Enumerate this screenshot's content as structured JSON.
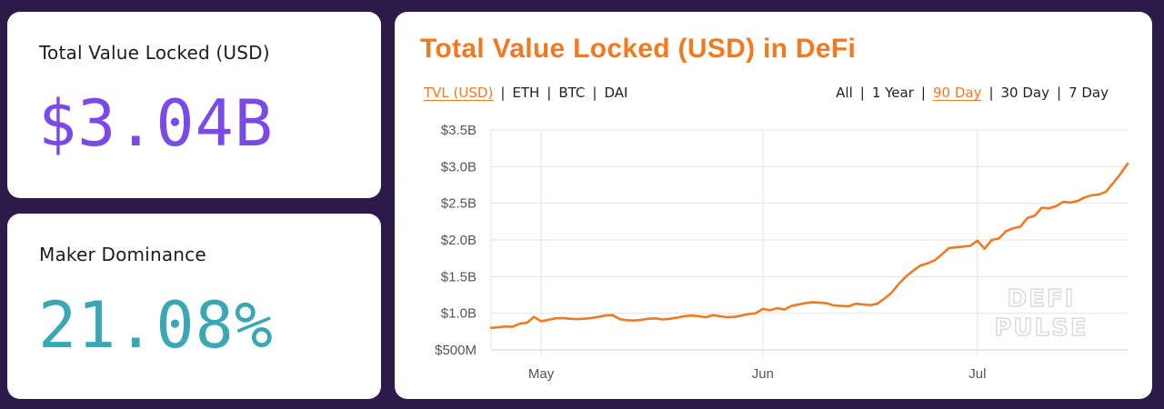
{
  "stats": {
    "tvl": {
      "label": "Total Value Locked (USD)",
      "value": "$3.04B"
    },
    "maker": {
      "label": "Maker Dominance",
      "value": "21.08%"
    }
  },
  "chart_panel": {
    "title": "Total Value Locked (USD) in DeFi",
    "series_options": [
      "TVL (USD)",
      "ETH",
      "BTC",
      "DAI"
    ],
    "series_selected": "TVL (USD)",
    "range_options": [
      "All",
      "1 Year",
      "90 Day",
      "30 Day",
      "7 Day"
    ],
    "range_selected": "90 Day",
    "watermark": [
      "DEFI",
      "PULSE"
    ]
  },
  "colors": {
    "line": "#f07a1f",
    "accent": "#f07a1f",
    "tvl_value": "#7a4ae8",
    "maker_value": "#3aa7b4",
    "background": "#2c1a4a"
  },
  "chart_data": {
    "type": "line",
    "title": "Total Value Locked (USD) in DeFi",
    "xlabel": "",
    "ylabel": "",
    "x_ticks": [
      {
        "label": "May",
        "date": "2020-05-01"
      },
      {
        "label": "Jun",
        "date": "2020-06-01"
      },
      {
        "label": "Jul",
        "date": "2020-07-01"
      }
    ],
    "y_ticks": [
      {
        "label": "$500M",
        "value": 500000000
      },
      {
        "label": "$1.0B",
        "value": 1000000000
      },
      {
        "label": "$1.5B",
        "value": 1500000000
      },
      {
        "label": "$2.0B",
        "value": 2000000000
      },
      {
        "label": "$2.5B",
        "value": 2500000000
      },
      {
        "label": "$3.0B",
        "value": 3000000000
      },
      {
        "label": "$3.5B",
        "value": 3500000000
      }
    ],
    "xlim": [
      "2020-04-24",
      "2020-07-22"
    ],
    "ylim": [
      500000000,
      3500000000
    ],
    "grid": true,
    "series": [
      {
        "values": [
          {
            "x": "2020-04-24",
            "y": 800000000
          },
          {
            "x": "2020-04-25",
            "y": 810000000
          },
          {
            "x": "2020-04-26",
            "y": 820000000
          },
          {
            "x": "2020-04-27",
            "y": 815000000
          },
          {
            "x": "2020-04-28",
            "y": 860000000
          },
          {
            "x": "2020-04-29",
            "y": 870000000
          },
          {
            "x": "2020-04-30",
            "y": 950000000
          },
          {
            "x": "2020-05-01",
            "y": 890000000
          },
          {
            "x": "2020-05-02",
            "y": 910000000
          },
          {
            "x": "2020-05-03",
            "y": 930000000
          },
          {
            "x": "2020-05-04",
            "y": 935000000
          },
          {
            "x": "2020-05-05",
            "y": 925000000
          },
          {
            "x": "2020-05-06",
            "y": 920000000
          },
          {
            "x": "2020-05-07",
            "y": 925000000
          },
          {
            "x": "2020-05-08",
            "y": 935000000
          },
          {
            "x": "2020-05-09",
            "y": 950000000
          },
          {
            "x": "2020-05-10",
            "y": 970000000
          },
          {
            "x": "2020-05-11",
            "y": 975000000
          },
          {
            "x": "2020-05-12",
            "y": 920000000
          },
          {
            "x": "2020-05-13",
            "y": 905000000
          },
          {
            "x": "2020-05-14",
            "y": 900000000
          },
          {
            "x": "2020-05-15",
            "y": 910000000
          },
          {
            "x": "2020-05-16",
            "y": 925000000
          },
          {
            "x": "2020-05-17",
            "y": 930000000
          },
          {
            "x": "2020-05-18",
            "y": 915000000
          },
          {
            "x": "2020-05-19",
            "y": 925000000
          },
          {
            "x": "2020-05-20",
            "y": 940000000
          },
          {
            "x": "2020-05-21",
            "y": 960000000
          },
          {
            "x": "2020-05-22",
            "y": 970000000
          },
          {
            "x": "2020-05-23",
            "y": 960000000
          },
          {
            "x": "2020-05-24",
            "y": 945000000
          },
          {
            "x": "2020-05-25",
            "y": 975000000
          },
          {
            "x": "2020-05-26",
            "y": 960000000
          },
          {
            "x": "2020-05-27",
            "y": 945000000
          },
          {
            "x": "2020-05-28",
            "y": 950000000
          },
          {
            "x": "2020-05-29",
            "y": 970000000
          },
          {
            "x": "2020-05-30",
            "y": 990000000
          },
          {
            "x": "2020-05-31",
            "y": 1000000000
          },
          {
            "x": "2020-06-01",
            "y": 1060000000
          },
          {
            "x": "2020-06-02",
            "y": 1040000000
          },
          {
            "x": "2020-06-03",
            "y": 1070000000
          },
          {
            "x": "2020-06-04",
            "y": 1050000000
          },
          {
            "x": "2020-06-05",
            "y": 1100000000
          },
          {
            "x": "2020-06-06",
            "y": 1120000000
          },
          {
            "x": "2020-06-07",
            "y": 1140000000
          },
          {
            "x": "2020-06-08",
            "y": 1150000000
          },
          {
            "x": "2020-06-09",
            "y": 1145000000
          },
          {
            "x": "2020-06-10",
            "y": 1135000000
          },
          {
            "x": "2020-06-11",
            "y": 1105000000
          },
          {
            "x": "2020-06-12",
            "y": 1100000000
          },
          {
            "x": "2020-06-13",
            "y": 1095000000
          },
          {
            "x": "2020-06-14",
            "y": 1130000000
          },
          {
            "x": "2020-06-15",
            "y": 1120000000
          },
          {
            "x": "2020-06-16",
            "y": 1110000000
          },
          {
            "x": "2020-06-17",
            "y": 1130000000
          },
          {
            "x": "2020-06-18",
            "y": 1200000000
          },
          {
            "x": "2020-06-19",
            "y": 1280000000
          },
          {
            "x": "2020-06-20",
            "y": 1400000000
          },
          {
            "x": "2020-06-21",
            "y": 1500000000
          },
          {
            "x": "2020-06-22",
            "y": 1580000000
          },
          {
            "x": "2020-06-23",
            "y": 1650000000
          },
          {
            "x": "2020-06-24",
            "y": 1680000000
          },
          {
            "x": "2020-06-25",
            "y": 1720000000
          },
          {
            "x": "2020-06-26",
            "y": 1800000000
          },
          {
            "x": "2020-06-27",
            "y": 1890000000
          },
          {
            "x": "2020-06-28",
            "y": 1900000000
          },
          {
            "x": "2020-06-29",
            "y": 1910000000
          },
          {
            "x": "2020-06-30",
            "y": 1920000000
          },
          {
            "x": "2020-07-01",
            "y": 1990000000
          },
          {
            "x": "2020-07-02",
            "y": 1880000000
          },
          {
            "x": "2020-07-03",
            "y": 2000000000
          },
          {
            "x": "2020-07-04",
            "y": 2020000000
          },
          {
            "x": "2020-07-05",
            "y": 2120000000
          },
          {
            "x": "2020-07-06",
            "y": 2160000000
          },
          {
            "x": "2020-07-07",
            "y": 2180000000
          },
          {
            "x": "2020-07-08",
            "y": 2300000000
          },
          {
            "x": "2020-07-09",
            "y": 2330000000
          },
          {
            "x": "2020-07-10",
            "y": 2440000000
          },
          {
            "x": "2020-07-11",
            "y": 2430000000
          },
          {
            "x": "2020-07-12",
            "y": 2460000000
          },
          {
            "x": "2020-07-13",
            "y": 2520000000
          },
          {
            "x": "2020-07-14",
            "y": 2510000000
          },
          {
            "x": "2020-07-15",
            "y": 2530000000
          },
          {
            "x": "2020-07-16",
            "y": 2580000000
          },
          {
            "x": "2020-07-17",
            "y": 2610000000
          },
          {
            "x": "2020-07-18",
            "y": 2620000000
          },
          {
            "x": "2020-07-19",
            "y": 2660000000
          },
          {
            "x": "2020-07-20",
            "y": 2780000000
          },
          {
            "x": "2020-07-21",
            "y": 2900000000
          },
          {
            "x": "2020-07-22",
            "y": 3040000000
          }
        ]
      }
    ]
  }
}
